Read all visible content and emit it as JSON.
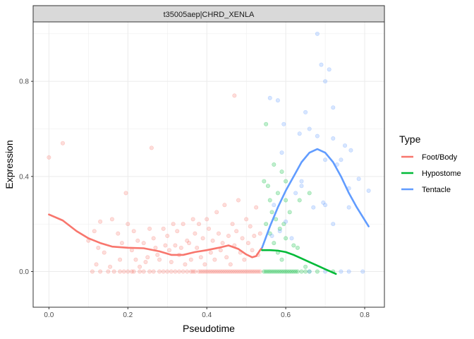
{
  "chart_data": {
    "type": "scatter",
    "facet_title": "t35005aep|CHRD_XENLA",
    "xlabel": "Pseudotime",
    "ylabel": "Expression",
    "xlim": [
      -0.04,
      0.85
    ],
    "ylim": [
      -0.15,
      1.05
    ],
    "x_ticks": [
      0.0,
      0.2,
      0.4,
      0.6,
      0.8
    ],
    "x_tick_labels": [
      "0.0",
      "0.2",
      "0.4",
      "0.6",
      "0.8"
    ],
    "y_ticks": [
      0.0,
      0.4,
      0.8
    ],
    "y_tick_labels": [
      "0.0",
      "0.4",
      "0.8"
    ],
    "grid": true,
    "legend": {
      "title": "Type",
      "position": "right"
    },
    "series": [
      {
        "name": "Foot/Body",
        "color": "#F8766D",
        "points": [
          [
            0.0,
            0.48
          ],
          [
            0.035,
            0.54
          ],
          [
            0.26,
            0.52
          ],
          [
            0.47,
            0.74
          ],
          [
            0.195,
            0.33
          ],
          [
            0.13,
            0.21
          ],
          [
            0.115,
            0.17
          ],
          [
            0.16,
            0.22
          ],
          [
            0.1,
            0.13
          ],
          [
            0.12,
            0.03
          ],
          [
            0.175,
            0.16
          ],
          [
            0.18,
            0.05
          ],
          [
            0.2,
            0.2
          ],
          [
            0.215,
            0.17
          ],
          [
            0.22,
            0.05
          ],
          [
            0.24,
            0.12
          ],
          [
            0.25,
            0.06
          ],
          [
            0.255,
            0.18
          ],
          [
            0.27,
            0.1
          ],
          [
            0.28,
            0.05
          ],
          [
            0.29,
            0.18
          ],
          [
            0.3,
            0.15
          ],
          [
            0.31,
            0.04
          ],
          [
            0.32,
            0.11
          ],
          [
            0.33,
            0.07
          ],
          [
            0.34,
            0.2
          ],
          [
            0.35,
            0.13
          ],
          [
            0.36,
            0.05
          ],
          [
            0.37,
            0.16
          ],
          [
            0.375,
            0.1
          ],
          [
            0.38,
            0.2
          ],
          [
            0.385,
            0.06
          ],
          [
            0.39,
            0.14
          ],
          [
            0.395,
            0.03
          ],
          [
            0.4,
            0.22
          ],
          [
            0.405,
            0.18
          ],
          [
            0.41,
            0.08
          ],
          [
            0.415,
            0.13
          ],
          [
            0.42,
            0.05
          ],
          [
            0.425,
            0.25
          ],
          [
            0.43,
            0.16
          ],
          [
            0.435,
            0.09
          ],
          [
            0.44,
            0.12
          ],
          [
            0.445,
            0.28
          ],
          [
            0.45,
            0.06
          ],
          [
            0.455,
            0.15
          ],
          [
            0.46,
            0.03
          ],
          [
            0.465,
            0.2
          ],
          [
            0.47,
            0.11
          ],
          [
            0.475,
            0.17
          ],
          [
            0.48,
            0.3
          ],
          [
            0.485,
            0.08
          ],
          [
            0.49,
            0.14
          ],
          [
            0.495,
            0.05
          ],
          [
            0.5,
            0.22
          ],
          [
            0.505,
            0.12
          ],
          [
            0.51,
            0.19
          ],
          [
            0.515,
            0.09
          ],
          [
            0.52,
            0.15
          ],
          [
            0.525,
            0.27
          ],
          [
            0.53,
            0.07
          ],
          [
            0.535,
            0.16
          ],
          [
            0.225,
            0.13
          ],
          [
            0.245,
            0.04
          ],
          [
            0.265,
            0.14
          ],
          [
            0.305,
            0.09
          ],
          [
            0.325,
            0.17
          ],
          [
            0.345,
            0.03
          ],
          [
            0.355,
            0.12
          ],
          [
            0.365,
            0.22
          ],
          [
            0.14,
            0.08
          ],
          [
            0.155,
            0.02
          ],
          [
            0.125,
            0.1
          ],
          [
            0.185,
            0.12
          ],
          [
            0.21,
            0.09
          ],
          [
            0.23,
            0.02
          ],
          [
            0.275,
            0.07
          ],
          [
            0.295,
            0.11
          ],
          [
            0.315,
            0.2
          ],
          [
            0.335,
            0.1
          ],
          [
            0.11,
            0.0
          ],
          [
            0.13,
            0.0
          ],
          [
            0.15,
            0.0
          ],
          [
            0.165,
            0.0
          ],
          [
            0.18,
            0.0
          ],
          [
            0.19,
            0.0
          ],
          [
            0.2,
            0.0
          ],
          [
            0.21,
            0.0
          ],
          [
            0.215,
            0.0
          ],
          [
            0.23,
            0.0
          ],
          [
            0.24,
            0.0
          ],
          [
            0.255,
            0.0
          ],
          [
            0.265,
            0.0
          ],
          [
            0.28,
            0.0
          ],
          [
            0.29,
            0.0
          ],
          [
            0.3,
            0.0
          ],
          [
            0.31,
            0.0
          ],
          [
            0.32,
            0.0
          ],
          [
            0.33,
            0.0
          ],
          [
            0.34,
            0.0
          ],
          [
            0.35,
            0.0
          ],
          [
            0.36,
            0.0
          ],
          [
            0.365,
            0.0
          ],
          [
            0.37,
            0.0
          ],
          [
            0.38,
            0.0
          ],
          [
            0.385,
            0.0
          ],
          [
            0.39,
            0.0
          ],
          [
            0.395,
            0.0
          ],
          [
            0.4,
            0.0
          ],
          [
            0.405,
            0.0
          ],
          [
            0.41,
            0.0
          ],
          [
            0.415,
            0.0
          ],
          [
            0.42,
            0.0
          ],
          [
            0.425,
            0.0
          ],
          [
            0.43,
            0.0
          ],
          [
            0.435,
            0.0
          ],
          [
            0.44,
            0.0
          ],
          [
            0.445,
            0.0
          ],
          [
            0.45,
            0.0
          ],
          [
            0.455,
            0.0
          ],
          [
            0.46,
            0.0
          ],
          [
            0.465,
            0.0
          ],
          [
            0.47,
            0.0
          ],
          [
            0.475,
            0.0
          ],
          [
            0.48,
            0.0
          ],
          [
            0.485,
            0.0
          ],
          [
            0.49,
            0.0
          ],
          [
            0.495,
            0.0
          ],
          [
            0.5,
            0.0
          ],
          [
            0.505,
            0.0
          ],
          [
            0.51,
            0.0
          ],
          [
            0.515,
            0.0
          ],
          [
            0.52,
            0.0
          ],
          [
            0.525,
            0.0
          ],
          [
            0.53,
            0.0
          ],
          [
            0.535,
            0.0
          ]
        ],
        "curve": [
          [
            0.0,
            0.24
          ],
          [
            0.035,
            0.215
          ],
          [
            0.07,
            0.17
          ],
          [
            0.1,
            0.14
          ],
          [
            0.13,
            0.12
          ],
          [
            0.16,
            0.105
          ],
          [
            0.2,
            0.1
          ],
          [
            0.24,
            0.098
          ],
          [
            0.28,
            0.085
          ],
          [
            0.31,
            0.07
          ],
          [
            0.34,
            0.07
          ],
          [
            0.37,
            0.082
          ],
          [
            0.4,
            0.09
          ],
          [
            0.43,
            0.1
          ],
          [
            0.455,
            0.11
          ],
          [
            0.48,
            0.095
          ],
          [
            0.5,
            0.072
          ],
          [
            0.515,
            0.06
          ],
          [
            0.525,
            0.065
          ],
          [
            0.535,
            0.09
          ],
          [
            0.54,
            0.1
          ]
        ]
      },
      {
        "name": "Hypostome",
        "color": "#00BA38",
        "points": [
          [
            0.55,
            0.62
          ],
          [
            0.57,
            0.45
          ],
          [
            0.58,
            0.33
          ],
          [
            0.59,
            0.42
          ],
          [
            0.6,
            0.38
          ],
          [
            0.545,
            0.38
          ],
          [
            0.555,
            0.36
          ],
          [
            0.56,
            0.3
          ],
          [
            0.565,
            0.25
          ],
          [
            0.575,
            0.22
          ],
          [
            0.585,
            0.18
          ],
          [
            0.595,
            0.2
          ],
          [
            0.6,
            0.14
          ],
          [
            0.61,
            0.25
          ],
          [
            0.62,
            0.11
          ],
          [
            0.635,
            0.3
          ],
          [
            0.55,
            0.2
          ],
          [
            0.56,
            0.16
          ],
          [
            0.57,
            0.12
          ],
          [
            0.58,
            0.08
          ],
          [
            0.59,
            0.05
          ],
          [
            0.63,
            0.1
          ],
          [
            0.65,
            0.02
          ],
          [
            0.66,
            0.33
          ],
          [
            0.6,
            0.3
          ],
          [
            0.545,
            0.0
          ],
          [
            0.55,
            0.0
          ],
          [
            0.555,
            0.0
          ],
          [
            0.56,
            0.0
          ],
          [
            0.565,
            0.0
          ],
          [
            0.57,
            0.0
          ],
          [
            0.575,
            0.0
          ],
          [
            0.58,
            0.0
          ],
          [
            0.585,
            0.0
          ],
          [
            0.59,
            0.0
          ],
          [
            0.595,
            0.0
          ],
          [
            0.6,
            0.0
          ],
          [
            0.605,
            0.0
          ],
          [
            0.61,
            0.0
          ],
          [
            0.615,
            0.0
          ],
          [
            0.62,
            0.0
          ],
          [
            0.625,
            0.0
          ],
          [
            0.63,
            0.0
          ],
          [
            0.64,
            0.0
          ],
          [
            0.65,
            0.0
          ],
          [
            0.66,
            0.0
          ],
          [
            0.68,
            0.0
          ],
          [
            0.72,
            0.0
          ]
        ],
        "curve": [
          [
            0.54,
            0.09
          ],
          [
            0.56,
            0.09
          ],
          [
            0.58,
            0.088
          ],
          [
            0.6,
            0.082
          ],
          [
            0.62,
            0.07
          ],
          [
            0.64,
            0.055
          ],
          [
            0.66,
            0.04
          ],
          [
            0.68,
            0.025
          ],
          [
            0.7,
            0.01
          ],
          [
            0.727,
            -0.01
          ]
        ]
      },
      {
        "name": "Tentacle",
        "color": "#619CFF",
        "points": [
          [
            0.68,
            1.0
          ],
          [
            0.69,
            0.87
          ],
          [
            0.7,
            0.8
          ],
          [
            0.71,
            0.85
          ],
          [
            0.72,
            0.69
          ],
          [
            0.56,
            0.73
          ],
          [
            0.58,
            0.72
          ],
          [
            0.595,
            0.62
          ],
          [
            0.65,
            0.67
          ],
          [
            0.66,
            0.6
          ],
          [
            0.72,
            0.56
          ],
          [
            0.74,
            0.47
          ],
          [
            0.75,
            0.53
          ],
          [
            0.785,
            0.39
          ],
          [
            0.81,
            0.34
          ],
          [
            0.68,
            0.57
          ],
          [
            0.635,
            0.58
          ],
          [
            0.59,
            0.5
          ],
          [
            0.7,
            0.28
          ],
          [
            0.72,
            0.2
          ],
          [
            0.695,
            0.29
          ],
          [
            0.76,
            0.27
          ],
          [
            0.565,
            0.15
          ],
          [
            0.585,
            0.17
          ],
          [
            0.6,
            0.21
          ],
          [
            0.615,
            0.14
          ],
          [
            0.625,
            0.33
          ],
          [
            0.64,
            0.38
          ],
          [
            0.64,
            0.36
          ],
          [
            0.67,
            0.27
          ],
          [
            0.7,
            0.47
          ],
          [
            0.73,
            0.45
          ],
          [
            0.765,
            0.51
          ],
          [
            0.76,
            0.35
          ],
          [
            0.66,
            0.0
          ],
          [
            0.7,
            0.0
          ],
          [
            0.74,
            0.0
          ],
          [
            0.76,
            0.0
          ],
          [
            0.795,
            0.0
          ],
          [
            0.57,
            0.28
          ]
        ],
        "curve": [
          [
            0.54,
            0.1
          ],
          [
            0.56,
            0.19
          ],
          [
            0.58,
            0.27
          ],
          [
            0.6,
            0.34
          ],
          [
            0.62,
            0.4
          ],
          [
            0.64,
            0.46
          ],
          [
            0.66,
            0.5
          ],
          [
            0.68,
            0.515
          ],
          [
            0.7,
            0.5
          ],
          [
            0.72,
            0.46
          ],
          [
            0.74,
            0.4
          ],
          [
            0.76,
            0.33
          ],
          [
            0.78,
            0.27
          ],
          [
            0.795,
            0.23
          ],
          [
            0.81,
            0.19
          ]
        ]
      }
    ]
  }
}
